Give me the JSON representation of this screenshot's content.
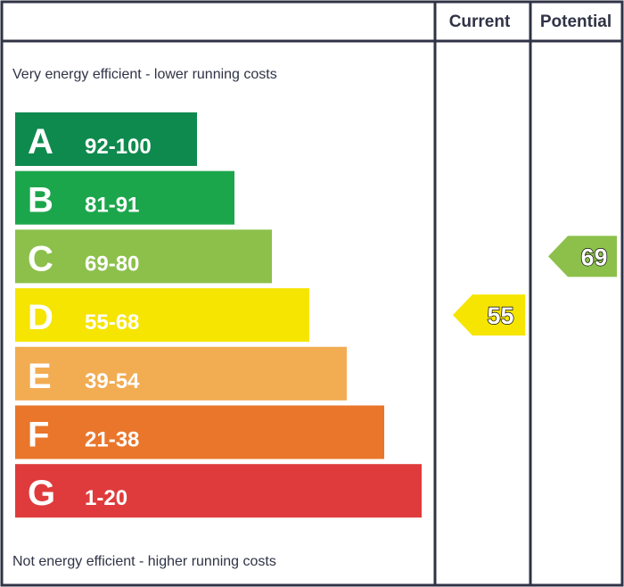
{
  "header": {
    "current_label": "Current",
    "potential_label": "Potential"
  },
  "notes": {
    "top": "Very energy efficient - lower running costs",
    "bottom": "Not energy efficient - higher running costs"
  },
  "colors": {
    "frame": "#2f3345",
    "A": "#0f8a4e",
    "B": "#1ca64c",
    "C": "#8cc04b",
    "D": "#f6e500",
    "E": "#f2ac52",
    "F": "#e9762b",
    "G": "#df3b3c"
  },
  "chart_data": {
    "type": "bar",
    "categories": [
      "A",
      "B",
      "C",
      "D",
      "E",
      "F",
      "G"
    ],
    "ranges": [
      "92-100",
      "81-91",
      "69-80",
      "55-68",
      "39-54",
      "21-38",
      "1-20"
    ],
    "current": {
      "value": 55,
      "band": "D"
    },
    "potential": {
      "value": 69,
      "band": "C"
    }
  }
}
